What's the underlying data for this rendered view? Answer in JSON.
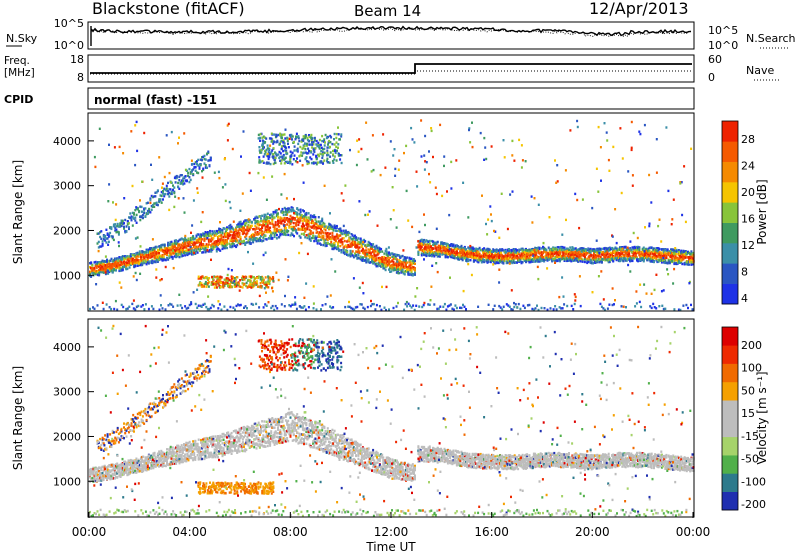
{
  "header": {
    "station": "Blackstone (fitACF)",
    "beam": "Beam 14",
    "date": "12/Apr/2013",
    "cpid": "normal (fast) -151"
  },
  "top_panels": {
    "noise": {
      "left_label": "N.Sky",
      "left_ticks": [
        "10^5",
        "10^0"
      ],
      "right_label": "N.Search",
      "right_ticks": [
        "10^5",
        "10^0"
      ]
    },
    "freq": {
      "left_label_1": "Freq.",
      "left_label_2": "[MHz]",
      "left_ticks": [
        "18",
        "8"
      ],
      "right_label": "Nave",
      "right_ticks": [
        "60",
        "0"
      ]
    },
    "cpid_label": "CPID"
  },
  "colors": {
    "power": [
      "#1e32e6",
      "#2a56c2",
      "#3b8fa8",
      "#3f9a60",
      "#88c43a",
      "#f5c400",
      "#f58a00",
      "#f55a00",
      "#ee2200"
    ],
    "velocity": [
      "#1f2fb0",
      "#2d7a8c",
      "#51b04a",
      "#a6d36a",
      "#bdbdbd",
      "#bdbdbd",
      "#f5a000",
      "#f06a00",
      "#ee2a00",
      "#dd0000"
    ]
  },
  "chart_data": [
    {
      "type": "heatmap",
      "title": "",
      "ylabel": "Slant Range [km]",
      "xlabel": "",
      "xlim": [
        0,
        24
      ],
      "ylim": [
        180,
        4600
      ],
      "yticks": [
        "4000",
        "3000",
        "2000",
        "1000"
      ],
      "colorbar": {
        "label": "Power [dB]",
        "range": [
          0,
          32
        ],
        "ticks": [
          "28",
          "24",
          "20",
          "16",
          "12",
          "8",
          "4"
        ]
      },
      "series": [
        {
          "x": [
            0,
            1,
            2,
            3,
            4,
            5,
            6,
            7,
            8,
            9,
            10,
            11,
            12,
            12.95
          ],
          "y": [
            1150,
            1250,
            1400,
            1550,
            1700,
            1800,
            1950,
            2100,
            2250,
            2050,
            1800,
            1550,
            1300,
            1200
          ]
        },
        {
          "x": [
            13.05,
            14,
            15,
            16,
            17,
            18,
            19,
            20,
            21,
            22,
            23,
            24
          ],
          "y": [
            1650,
            1600,
            1500,
            1450,
            1450,
            1500,
            1500,
            1450,
            1500,
            1500,
            1450,
            1400
          ]
        }
      ],
      "streak": {
        "x": [
          0.3,
          1,
          2,
          3,
          4,
          4.8
        ],
        "y": [
          1800,
          2000,
          2400,
          2900,
          3300,
          3650
        ]
      },
      "high_patch": {
        "x": [
          6.7,
          10.0
        ],
        "y": [
          3500,
          4200
        ]
      },
      "low_patch": {
        "x": [
          4.3,
          7.3
        ],
        "y": [
          750,
          1000
        ]
      }
    },
    {
      "type": "heatmap",
      "title": "",
      "ylabel": "Slant Range [km]",
      "xlabel": "Time UT",
      "xlim": [
        0,
        24
      ],
      "ylim": [
        180,
        4600
      ],
      "xticks": [
        "00:00",
        "04:00",
        "08:00",
        "12:00",
        "16:00",
        "20:00",
        "00:00"
      ],
      "yticks": [
        "4000",
        "3000",
        "2000",
        "1000"
      ],
      "colorbar": {
        "label": "Velocity [m s⁻¹]",
        "range": [
          -250,
          250
        ],
        "ticks": [
          "200",
          "100",
          "50",
          "15",
          "-15",
          "-50",
          "-100",
          "-200"
        ]
      },
      "series": [
        {
          "x": [
            0,
            1,
            2,
            3,
            4,
            5,
            6,
            7,
            8,
            9,
            10,
            11,
            12,
            12.95
          ],
          "y": [
            1150,
            1250,
            1400,
            1550,
            1700,
            1800,
            1950,
            2100,
            2250,
            2050,
            1800,
            1550,
            1300,
            1200
          ]
        },
        {
          "x": [
            13.05,
            14,
            15,
            16,
            17,
            18,
            19,
            20,
            21,
            22,
            23,
            24
          ],
          "y": [
            1650,
            1600,
            1500,
            1450,
            1450,
            1500,
            1500,
            1450,
            1500,
            1500,
            1450,
            1400
          ]
        }
      ],
      "streak": {
        "x": [
          0.3,
          1,
          2,
          3,
          4,
          4.8
        ],
        "y": [
          1800,
          2000,
          2400,
          2900,
          3300,
          3650
        ]
      },
      "high_patch": {
        "x": [
          6.7,
          10.0
        ],
        "y": [
          3500,
          4200
        ]
      },
      "low_patch": {
        "x": [
          4.3,
          7.3
        ],
        "y": [
          750,
          1000
        ]
      }
    }
  ]
}
